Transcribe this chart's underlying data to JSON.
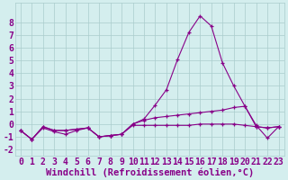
{
  "x": [
    0,
    1,
    2,
    3,
    4,
    5,
    6,
    7,
    8,
    9,
    10,
    11,
    12,
    13,
    14,
    15,
    16,
    17,
    18,
    19,
    20,
    21,
    22,
    23
  ],
  "line1": [
    -0.5,
    -1.2,
    -0.3,
    -0.6,
    -0.8,
    -0.5,
    -0.3,
    -1.0,
    -0.9,
    -0.8,
    0.0,
    0.4,
    1.5,
    2.7,
    5.1,
    7.2,
    8.5,
    7.7,
    4.8,
    3.0,
    1.4,
    -0.1,
    -1.1,
    -0.2
  ],
  "line2": [
    -0.5,
    -1.2,
    -0.2,
    -0.5,
    -0.5,
    -0.4,
    -0.3,
    -1.0,
    -0.9,
    -0.8,
    0.0,
    0.3,
    0.5,
    0.6,
    0.7,
    0.8,
    0.9,
    1.0,
    1.1,
    1.3,
    1.4,
    -0.2,
    -0.3,
    -0.2
  ],
  "line3": [
    -0.5,
    -1.2,
    -0.2,
    -0.5,
    -0.5,
    -0.4,
    -0.3,
    -1.0,
    -0.9,
    -0.8,
    -0.1,
    -0.1,
    -0.1,
    -0.1,
    -0.1,
    -0.1,
    0.0,
    0.0,
    0.0,
    0.0,
    -0.1,
    -0.2,
    -0.3,
    -0.2
  ],
  "line_color": "#880088",
  "bg_color": "#d4eeee",
  "grid_color": "#aacccc",
  "xlabel": "Windchill (Refroidissement éolien,°C)",
  "ylim": [
    -2.5,
    9.5
  ],
  "xlim": [
    -0.5,
    23.5
  ],
  "yticks": [
    -2,
    -1,
    0,
    1,
    2,
    3,
    4,
    5,
    6,
    7,
    8
  ],
  "xticks": [
    0,
    1,
    2,
    3,
    4,
    5,
    6,
    7,
    8,
    9,
    10,
    11,
    12,
    13,
    14,
    15,
    16,
    17,
    18,
    19,
    20,
    21,
    22,
    23
  ],
  "tick_fontsize": 7,
  "xlabel_fontsize": 7.5,
  "linewidth": 0.8,
  "markersize": 3.5
}
